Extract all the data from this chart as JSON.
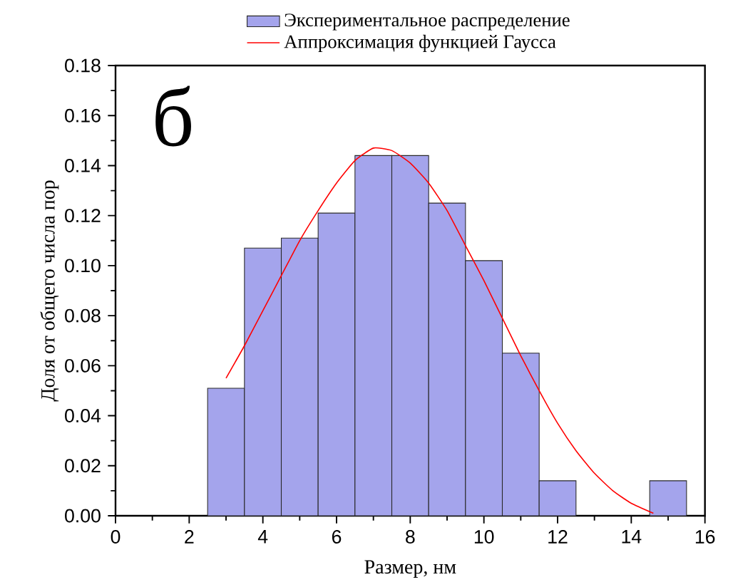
{
  "chart_data": {
    "type": "histogram",
    "xlabel": "Размер, нм",
    "ylabel": "Доля от общего числа пор",
    "annotations": [
      "б"
    ],
    "xlim": [
      0,
      16
    ],
    "xticks": [
      0,
      2,
      4,
      6,
      8,
      10,
      12,
      14,
      16
    ],
    "ylim": [
      0,
      0.18
    ],
    "yticks": [
      {
        "value": 0,
        "label": "0.00"
      },
      {
        "value": 0.02,
        "label": "0.02"
      },
      {
        "value": 0.04,
        "label": "0.04"
      },
      {
        "value": 0.06,
        "label": "0.06"
      },
      {
        "value": 0.08,
        "label": "0.08"
      },
      {
        "value": 0.1,
        "label": "0.10"
      },
      {
        "value": 0.12,
        "label": "0.12"
      },
      {
        "value": 0.14,
        "label": "0.14"
      },
      {
        "value": 0.16,
        "label": "0.16"
      },
      {
        "value": 0.18,
        "label": "0.18"
      }
    ],
    "legend": "top",
    "grid": false,
    "series": [
      {
        "type": "histogram",
        "name": "Экспериментальное распределение",
        "color": "#a4a4ec",
        "bins": [
          2.5,
          3.5,
          4.5,
          5.5,
          6.5,
          7.5,
          8.5,
          9.5,
          10.5,
          11.5,
          12.5,
          13.5,
          14.5,
          15.5
        ],
        "values": [
          0.051,
          0.107,
          0.111,
          0.121,
          0.144,
          0.144,
          0.125,
          0.102,
          0.065,
          0.014,
          0,
          0,
          0.014
        ]
      },
      {
        "type": "line",
        "name": "Аппроксимация функцией Гаусса",
        "color": "#ff0000",
        "line_style": "solid",
        "marker": "none",
        "x": [
          3,
          3.5,
          4,
          4.5,
          5,
          5.5,
          6,
          6.5,
          7,
          7.5,
          8,
          8.5,
          9,
          9.5,
          10,
          10.5,
          11,
          11.5,
          12,
          12.5,
          13,
          13.5,
          14,
          14.6
        ],
        "values": [
          0.055,
          0.068,
          0.082,
          0.096,
          0.11,
          0.122,
          0.133,
          0.142,
          0.147,
          0.146,
          0.141,
          0.133,
          0.122,
          0.108,
          0.094,
          0.079,
          0.064,
          0.05,
          0.037,
          0.026,
          0.017,
          0.01,
          0.005,
          0.001
        ]
      }
    ]
  }
}
